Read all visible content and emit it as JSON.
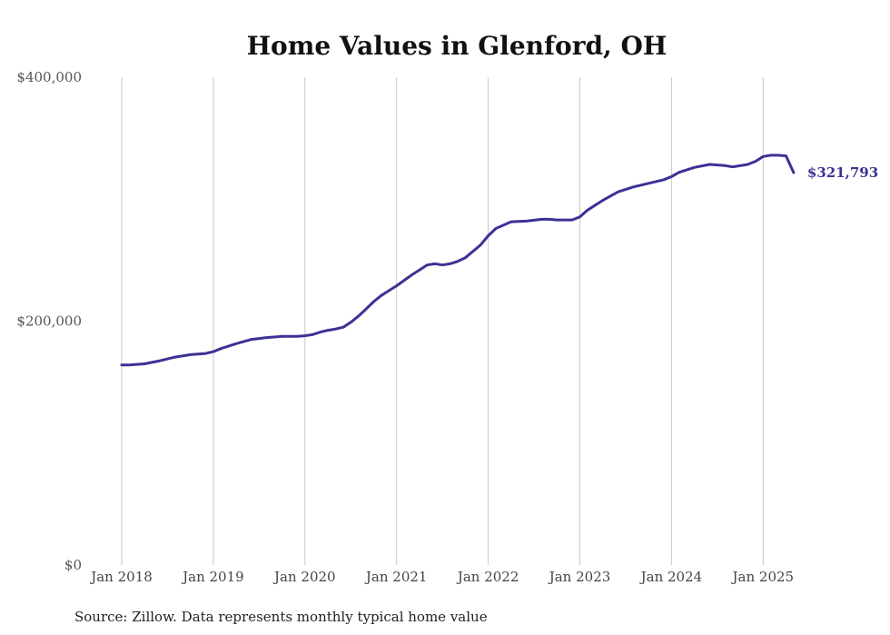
{
  "chart_data": {
    "type": "line",
    "title": "Home Values in Glenford, OH",
    "source": "Source: Zillow. Data represents monthly typical home value",
    "ylim": [
      0,
      400000
    ],
    "y_ticks": [
      {
        "value": 0,
        "label": "$0"
      },
      {
        "value": 200000,
        "label": "$200,000"
      },
      {
        "value": 400000,
        "label": "$400,000"
      }
    ],
    "x_ticks": [
      {
        "value": 2018.0,
        "label": "Jan 2018"
      },
      {
        "value": 2019.0,
        "label": "Jan 2019"
      },
      {
        "value": 2020.0,
        "label": "Jan 2020"
      },
      {
        "value": 2021.0,
        "label": "Jan 2021"
      },
      {
        "value": 2022.0,
        "label": "Jan 2022"
      },
      {
        "value": 2023.0,
        "label": "Jan 2023"
      },
      {
        "value": 2024.0,
        "label": "Jan 2024"
      },
      {
        "value": 2025.0,
        "label": "Jan 2025"
      }
    ],
    "xlim": [
      2018.0,
      2025.35
    ],
    "grid": "vertical",
    "line_color": "#3b3295",
    "end_label": "$321,793",
    "series": [
      {
        "x": [
          2018.0,
          2018.083,
          2018.25,
          2018.417,
          2018.583,
          2018.75,
          2018.917,
          2019.0,
          2019.083,
          2019.25,
          2019.417,
          2019.583,
          2019.75,
          2019.917,
          2020.0,
          2020.083,
          2020.167,
          2020.25,
          2020.333,
          2020.417,
          2020.5,
          2020.583,
          2020.667,
          2020.75,
          2020.833,
          2020.917,
          2021.0,
          2021.167,
          2021.333,
          2021.417,
          2021.5,
          2021.583,
          2021.667,
          2021.75,
          2021.917,
          2022.0,
          2022.083,
          2022.25,
          2022.417,
          2022.583,
          2022.667,
          2022.75,
          2022.917,
          2023.0,
          2023.083,
          2023.25,
          2023.417,
          2023.583,
          2023.75,
          2023.917,
          2024.0,
          2024.083,
          2024.25,
          2024.417,
          2024.583,
          2024.667,
          2024.833,
          2024.917,
          2025.0,
          2025.083,
          2025.167,
          2025.25,
          2025.333
        ],
        "y": [
          164000,
          164000,
          165000,
          167500,
          170500,
          172500,
          173500,
          175000,
          177500,
          181500,
          185000,
          186500,
          187500,
          187500,
          188000,
          189000,
          191000,
          192500,
          193500,
          195000,
          199000,
          204000,
          210000,
          216000,
          221000,
          225000,
          229000,
          238000,
          246000,
          247000,
          246000,
          247000,
          249000,
          252000,
          262500,
          270000,
          276000,
          281500,
          282000,
          283500,
          283500,
          283000,
          283000,
          285500,
          291000,
          299000,
          306000,
          310000,
          313000,
          316000,
          318500,
          322000,
          326000,
          328500,
          327500,
          326500,
          328500,
          331000,
          335000,
          336000,
          336000,
          335500,
          321793
        ]
      }
    ]
  }
}
